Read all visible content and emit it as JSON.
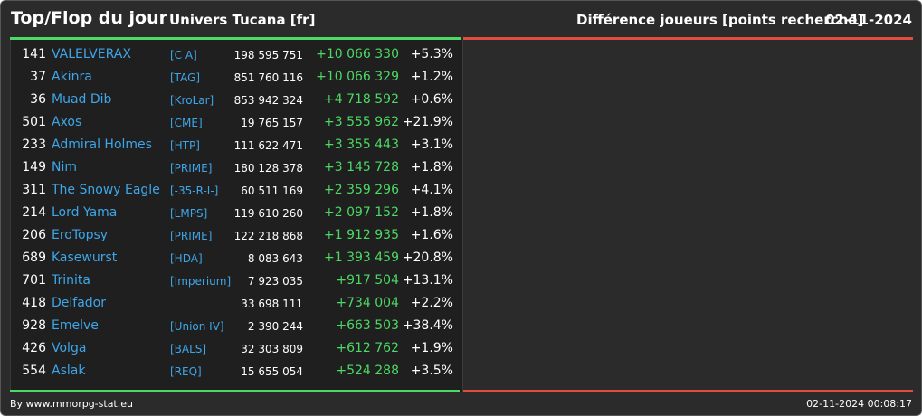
{
  "header": {
    "title": "Top/Flop du jour",
    "subtitle": "Univers Tucana [fr]",
    "right_title": "Différence joueurs [points recherche]",
    "date": "02-11-2024"
  },
  "colors": {
    "background": "#2b2b2b",
    "table_background": "#1f1f1f",
    "name": "#3ea6e8",
    "gain": "#4cd964",
    "loss_bar": "#e24b3f"
  },
  "rows": [
    {
      "rank": "141",
      "name": "VALELVERAX",
      "tag": "[C A]",
      "points": "198 595 751",
      "diff": "+10 066 330",
      "pct": "+5.3%"
    },
    {
      "rank": "37",
      "name": "Akinra",
      "tag": "[TAG]",
      "points": "851 760 116",
      "diff": "+10 066 329",
      "pct": "+1.2%"
    },
    {
      "rank": "36",
      "name": "Muad Dib",
      "tag": "[KroLar]",
      "points": "853 942 324",
      "diff": "+4 718 592",
      "pct": "+0.6%"
    },
    {
      "rank": "501",
      "name": "Axos",
      "tag": "[CME]",
      "points": "19 765 157",
      "diff": "+3 555 962",
      "pct": "+21.9%"
    },
    {
      "rank": "233",
      "name": "Admiral Holmes",
      "tag": "[HTP]",
      "points": "111 622 471",
      "diff": "+3 355 443",
      "pct": "+3.1%"
    },
    {
      "rank": "149",
      "name": "Nim",
      "tag": "[PRIME]",
      "points": "180 128 378",
      "diff": "+3 145 728",
      "pct": "+1.8%"
    },
    {
      "rank": "311",
      "name": "The Snowy Eagle",
      "tag": "[-35-R-I-]",
      "points": "60 511 169",
      "diff": "+2 359 296",
      "pct": "+4.1%"
    },
    {
      "rank": "214",
      "name": "Lord Yama",
      "tag": "[LMPS]",
      "points": "119 610 260",
      "diff": "+2 097 152",
      "pct": "+1.8%"
    },
    {
      "rank": "206",
      "name": "EroTopsy",
      "tag": "[PRIME]",
      "points": "122 218 868",
      "diff": "+1 912 935",
      "pct": "+1.6%"
    },
    {
      "rank": "689",
      "name": "Kasewurst",
      "tag": "[HDA]",
      "points": "8 083 643",
      "diff": "+1 393 459",
      "pct": "+20.8%"
    },
    {
      "rank": "701",
      "name": "Trinita",
      "tag": "[Imperium]",
      "points": "7 923 035",
      "diff": "+917 504",
      "pct": "+13.1%"
    },
    {
      "rank": "418",
      "name": "Delfador",
      "tag": "",
      "points": "33 698 111",
      "diff": "+734 004",
      "pct": "+2.2%"
    },
    {
      "rank": "928",
      "name": "Emelve",
      "tag": "[Union IV]",
      "points": "2 390 244",
      "diff": "+663 503",
      "pct": "+38.4%"
    },
    {
      "rank": "426",
      "name": "Volga",
      "tag": "[BALS]",
      "points": "32 303 809",
      "diff": "+612 762",
      "pct": "+1.9%"
    },
    {
      "rank": "554",
      "name": "Aslak",
      "tag": "[REQ]",
      "points": "15 655 054",
      "diff": "+524 288",
      "pct": "+3.5%"
    }
  ],
  "footer": {
    "credit": "By www.mmorpg-stat.eu",
    "timestamp": "02-11-2024 00:08:17"
  }
}
